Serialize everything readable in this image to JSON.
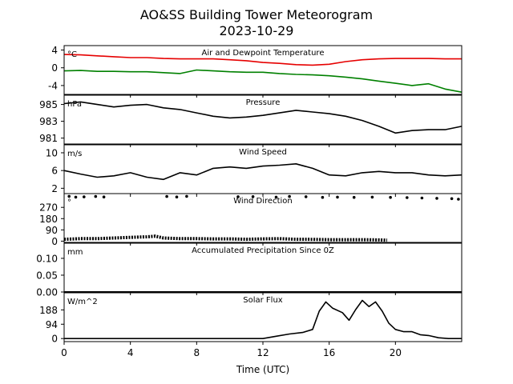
{
  "figure": {
    "title_line1": "AO&SS Building Tower Meteorogram",
    "title_line2": "2023-10-29",
    "xlabel": "Time (UTC)",
    "x_tick_labels": [
      "0",
      "4",
      "8",
      "12",
      "16",
      "20"
    ]
  },
  "colors": {
    "temperature": "#e60000",
    "dewpoint": "#008000",
    "line": "#000000"
  },
  "chart_data": [
    {
      "type": "line",
      "title": "Air and Dewpoint Temperature",
      "unit": "°C",
      "x_range": [
        0,
        24
      ],
      "ylim": [
        -6,
        5
      ],
      "y_ticks": [
        4,
        0,
        -4
      ],
      "x_ticks": [
        0,
        4,
        8,
        12,
        16,
        20
      ],
      "x": [
        0,
        1,
        2,
        3,
        4,
        5,
        6,
        7,
        8,
        9,
        10,
        11,
        12,
        13,
        14,
        15,
        16,
        17,
        18,
        19,
        20,
        21,
        22,
        23,
        24
      ],
      "series": [
        {
          "values": [
            3.0,
            2.9,
            2.7,
            2.5,
            2.3,
            2.3,
            2.1,
            2.0,
            2.0,
            2.0,
            1.8,
            1.6,
            1.2,
            1.0,
            0.7,
            0.6,
            0.8,
            1.4,
            1.8,
            2.0,
            2.1,
            2.1,
            2.1,
            2.0,
            2.0
          ]
        },
        {
          "values": [
            -0.7,
            -0.6,
            -0.8,
            -0.8,
            -0.9,
            -0.9,
            -1.1,
            -1.3,
            -0.5,
            -0.7,
            -0.9,
            -1.0,
            -1.0,
            -1.3,
            -1.5,
            -1.6,
            -1.8,
            -2.1,
            -2.5,
            -3.0,
            -3.5,
            -4.0,
            -3.6,
            -4.8,
            -5.5
          ]
        }
      ]
    },
    {
      "type": "line",
      "title": "Pressure",
      "unit": "hPa",
      "x_range": [
        0,
        24
      ],
      "ylim": [
        980.3,
        986.1
      ],
      "y_ticks": [
        985,
        983,
        981
      ],
      "x_ticks": [
        0,
        4,
        8,
        12,
        16,
        20
      ],
      "x": [
        0,
        1,
        2,
        3,
        4,
        5,
        6,
        7,
        8,
        9,
        10,
        11,
        12,
        13,
        14,
        15,
        16,
        17,
        18,
        19,
        20,
        21,
        22,
        23,
        24
      ],
      "series": [
        {
          "values": [
            985.1,
            985.3,
            985.0,
            984.7,
            984.9,
            985.0,
            984.6,
            984.4,
            984.0,
            983.6,
            983.4,
            983.5,
            983.7,
            984.0,
            984.3,
            984.1,
            983.9,
            983.6,
            983.1,
            982.4,
            981.6,
            981.9,
            982.0,
            982.0,
            982.4
          ]
        }
      ]
    },
    {
      "type": "line",
      "title": "Wind Speed",
      "unit": "m/s",
      "x_range": [
        0,
        24
      ],
      "ylim": [
        0.8,
        11.8
      ],
      "y_ticks": [
        10,
        6,
        2
      ],
      "x_ticks": [
        0,
        4,
        8,
        12,
        16,
        20
      ],
      "x": [
        0,
        1,
        2,
        3,
        4,
        5,
        6,
        7,
        8,
        9,
        10,
        11,
        12,
        13,
        14,
        15,
        16,
        17,
        18,
        19,
        20,
        21,
        22,
        23,
        24
      ],
      "series": [
        {
          "values": [
            6.0,
            5.2,
            4.5,
            4.8,
            5.5,
            4.5,
            4.0,
            5.5,
            5.0,
            6.5,
            6.8,
            6.5,
            7.0,
            7.2,
            7.5,
            6.5,
            5.0,
            4.8,
            5.5,
            5.8,
            5.5,
            5.5,
            5.0,
            4.8,
            5.0
          ]
        }
      ]
    },
    {
      "type": "scatter",
      "title": "Wind Direction",
      "unit": "°",
      "x_range": [
        0,
        24
      ],
      "ylim": [
        -10,
        380
      ],
      "y_ticks": [
        270,
        180,
        90,
        0
      ],
      "x_ticks": [
        0,
        4,
        8,
        12,
        16,
        20
      ],
      "x": [
        0.3,
        0.7,
        1.2,
        1.9,
        2.4,
        6.2,
        6.8,
        7.4,
        10.5,
        11.4,
        12.8,
        13.6,
        14.6,
        15.6,
        16.5,
        17.5,
        18.6,
        19.7,
        20.7,
        21.6,
        22.5,
        23.4,
        23.8
      ],
      "series": [
        {
          "values": [
            358,
            352,
            354,
            357,
            353,
            357,
            353,
            358,
            355,
            356,
            352,
            357,
            355,
            350,
            352,
            350,
            352,
            350,
            348,
            345,
            342,
            340,
            335
          ]
        }
      ],
      "low_band": {
        "x": [
          0,
          1,
          2,
          3,
          4,
          5,
          5.5,
          6,
          7,
          8,
          9,
          10,
          11,
          12,
          13,
          14,
          15,
          16,
          17,
          18,
          19,
          19.5
        ],
        "values": [
          15,
          20,
          20,
          25,
          30,
          35,
          40,
          25,
          20,
          20,
          18,
          18,
          15,
          18,
          20,
          15,
          14,
          12,
          12,
          12,
          10,
          8
        ]
      }
    },
    {
      "type": "line",
      "title": "Accumulated Precipitation Since 0Z",
      "unit": "mm",
      "x_range": [
        0,
        24
      ],
      "ylim": [
        0,
        0.145
      ],
      "y_ticks": [
        0.1,
        0.05,
        0.0
      ],
      "y_tick_labels": [
        "0.10",
        "0.05",
        "0.00"
      ],
      "x_ticks": [
        0,
        4,
        8,
        12,
        16,
        20
      ],
      "x": [
        0,
        24
      ],
      "series": [
        {
          "values": [
            0,
            0
          ]
        }
      ]
    },
    {
      "type": "line",
      "title": "Solar Flux",
      "unit": "W/m^2",
      "x_range": [
        0,
        24
      ],
      "ylim": [
        -20,
        300
      ],
      "y_ticks": [
        188,
        94,
        0
      ],
      "x_ticks": [
        0,
        4,
        8,
        12,
        16,
        20
      ],
      "x": [
        0,
        12,
        12.8,
        13.6,
        14.4,
        15.0,
        15.4,
        15.8,
        16.2,
        16.8,
        17.2,
        17.6,
        18.0,
        18.4,
        18.8,
        19.2,
        19.6,
        20.0,
        20.5,
        21.0,
        21.5,
        22.0,
        22.6,
        23.2,
        24
      ],
      "series": [
        {
          "values": [
            0,
            0,
            15,
            30,
            40,
            60,
            180,
            240,
            200,
            170,
            120,
            190,
            250,
            210,
            240,
            180,
            100,
            60,
            45,
            45,
            25,
            20,
            5,
            0,
            0
          ]
        }
      ]
    }
  ]
}
